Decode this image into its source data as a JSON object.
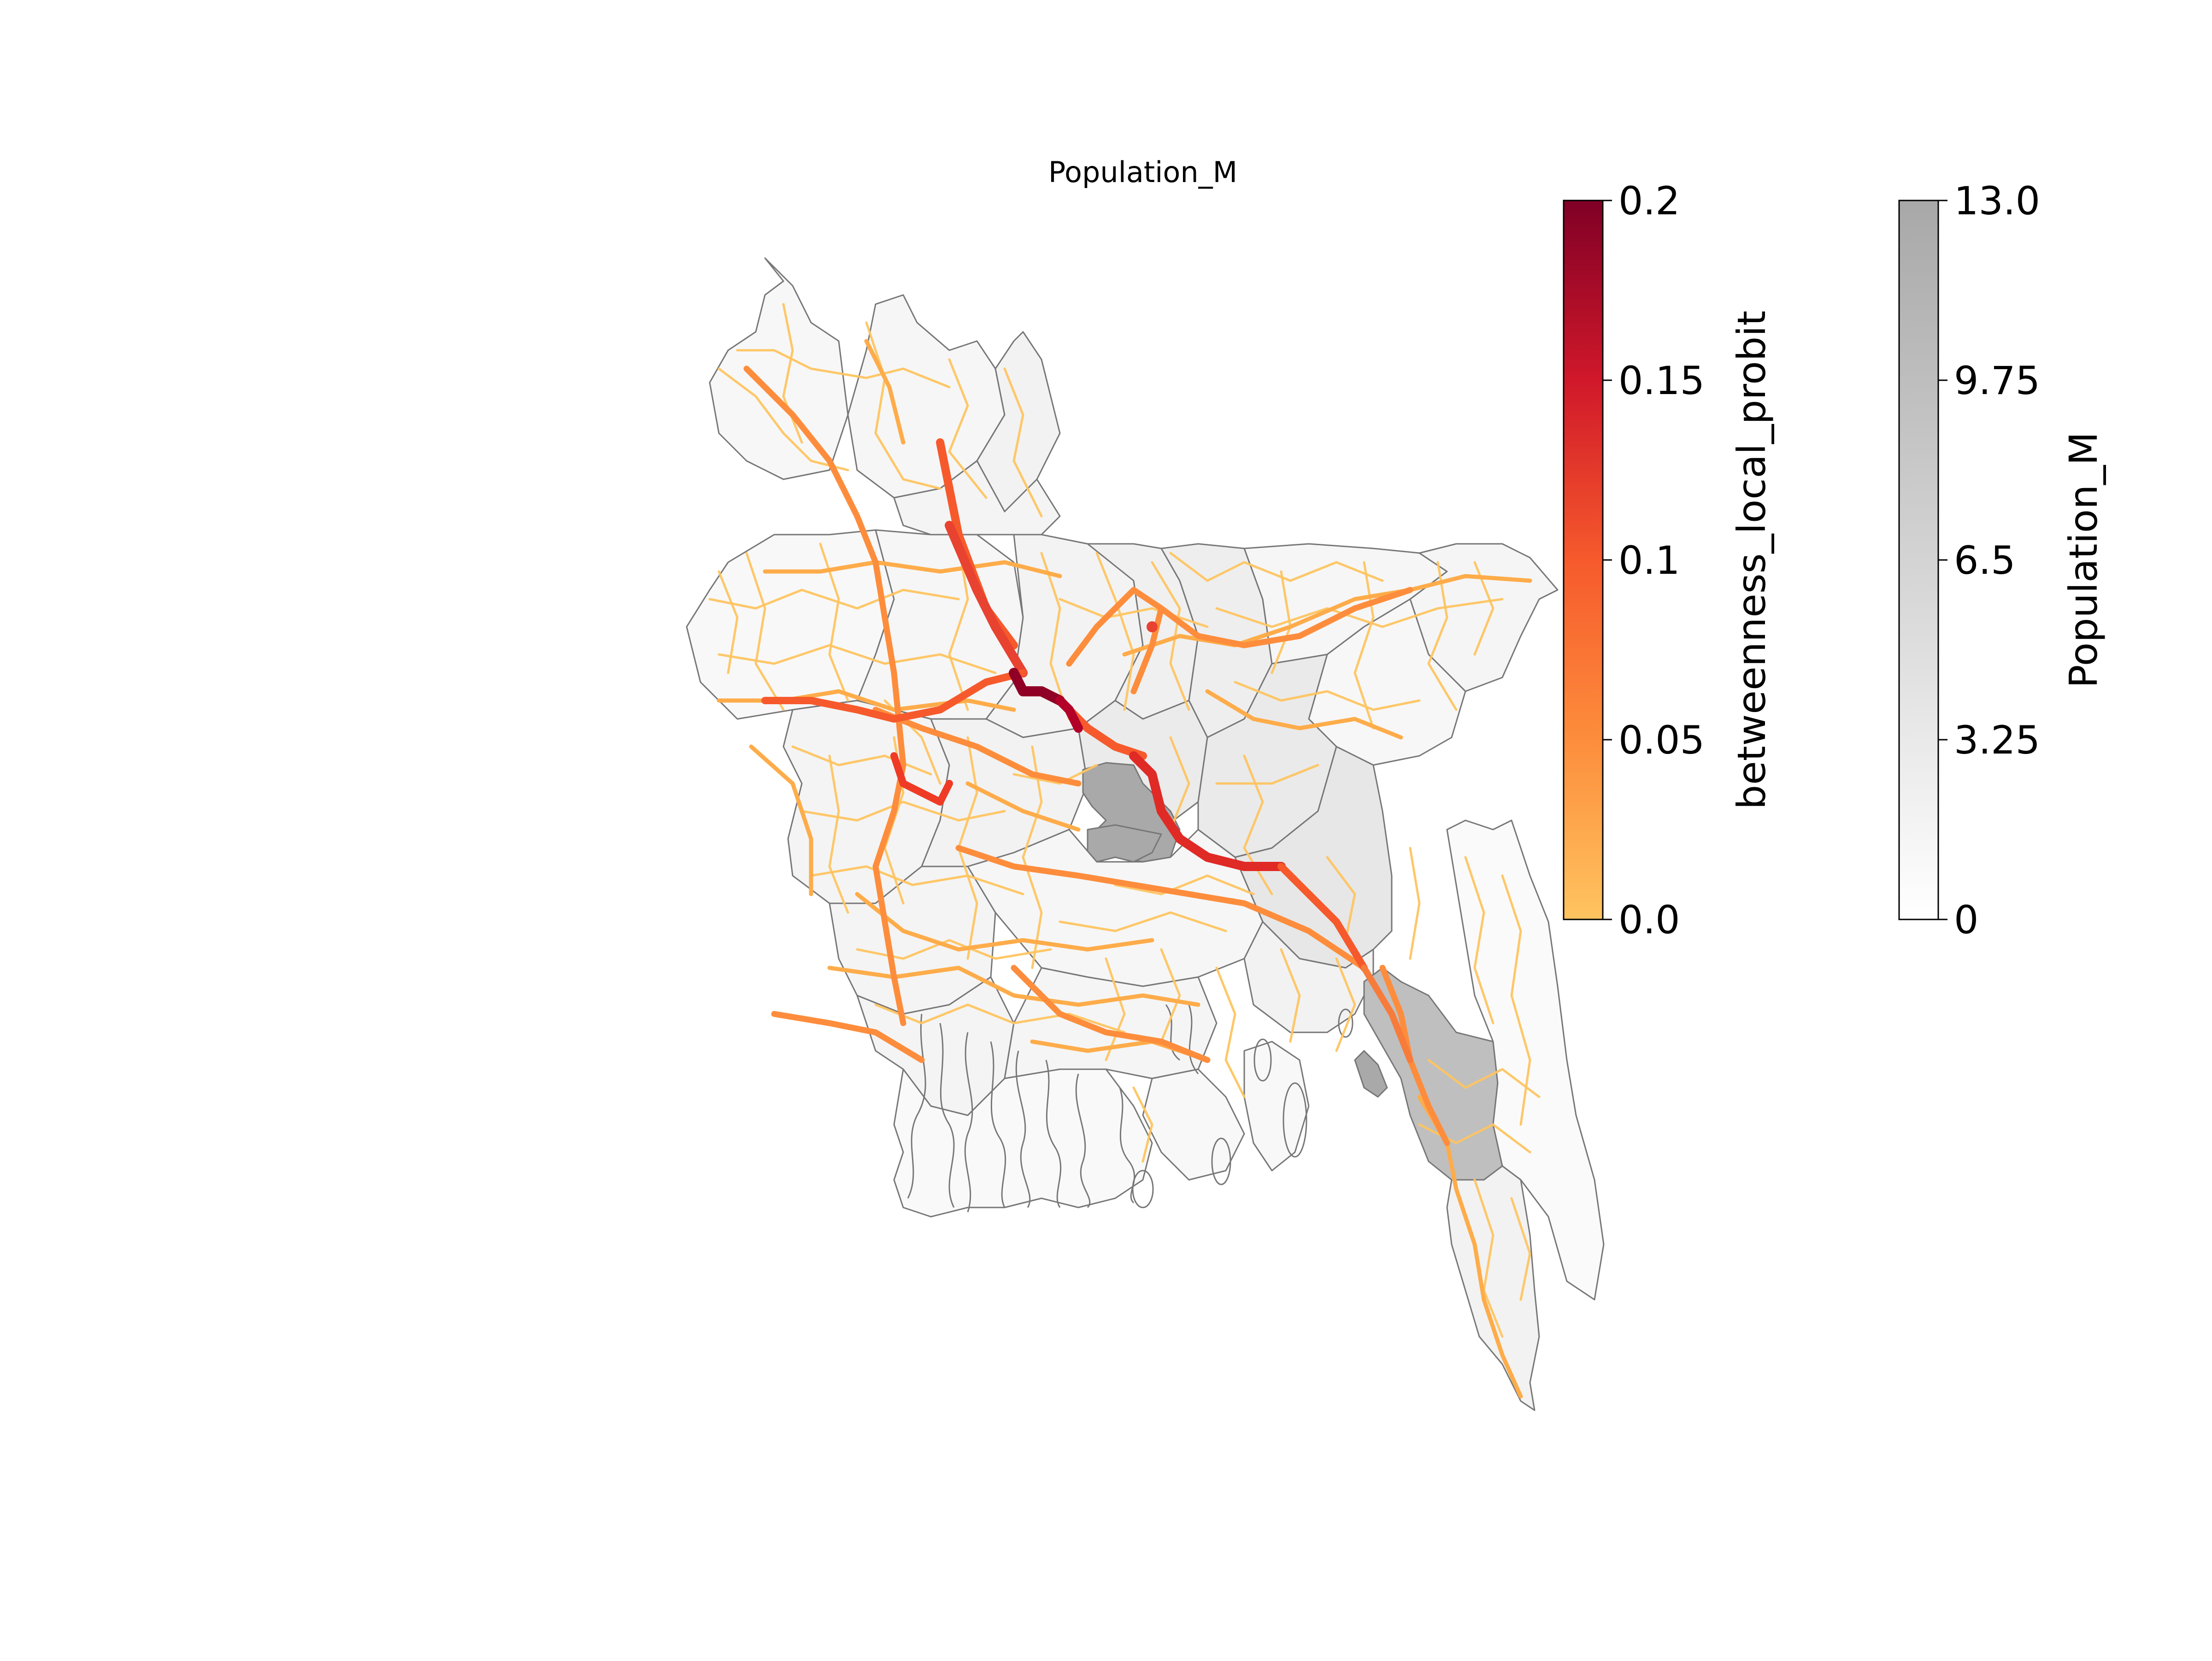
{
  "map": {
    "title": "Population_M",
    "district_values": {
      "rangpur_north": 1.2,
      "rangpur_mid": 1.6,
      "dinajpur": 1.9,
      "nilphamari": 1.3,
      "rajshahi_west": 1.1,
      "rajshahi_mid": 1.4,
      "bogra": 1.8,
      "sylhet_north": 1.3,
      "mymensingh_a": 2.2,
      "mymensingh_b": 2.5,
      "sylhet": 1.5,
      "moulvibazar": 1.2,
      "kushtia": 1.6,
      "tangail": 2.0,
      "gazipur": 3.0,
      "dhaka": 12.8,
      "narayanganj": 3.2,
      "comilla": 3.6,
      "jessore": 1.7,
      "faridpur": 1.4,
      "barisal": 1.5,
      "khulna": 1.6,
      "noakhali": 2.0,
      "chittagong": 9.5,
      "rangamati": 0.8,
      "coxs_bazar": 1.9,
      "bhola": 1.0,
      "patuakhali": 1.0,
      "sundarbans": 0.9
    }
  },
  "colorbars": {
    "roads": {
      "label": "betweenness_local_probit",
      "min": 0.0,
      "max": 0.2,
      "ticks": [
        "0.0",
        "0.05",
        "0.1",
        "0.15",
        "0.2"
      ],
      "tick_values": [
        0.0,
        0.05,
        0.1,
        0.15,
        0.2
      ],
      "colors": [
        "#fec460",
        "#fd8d3c",
        "#f03b20",
        "#bd0026",
        "#800026"
      ]
    },
    "population": {
      "label": "Population_M",
      "min": 0,
      "max": 13.0,
      "ticks": [
        "0",
        "3.25",
        "6.5",
        "9.75",
        "13.0"
      ],
      "tick_values": [
        0,
        3.25,
        6.5,
        9.75,
        13.0
      ],
      "colors": [
        "#ffffff",
        "#a8a8a8"
      ]
    }
  }
}
